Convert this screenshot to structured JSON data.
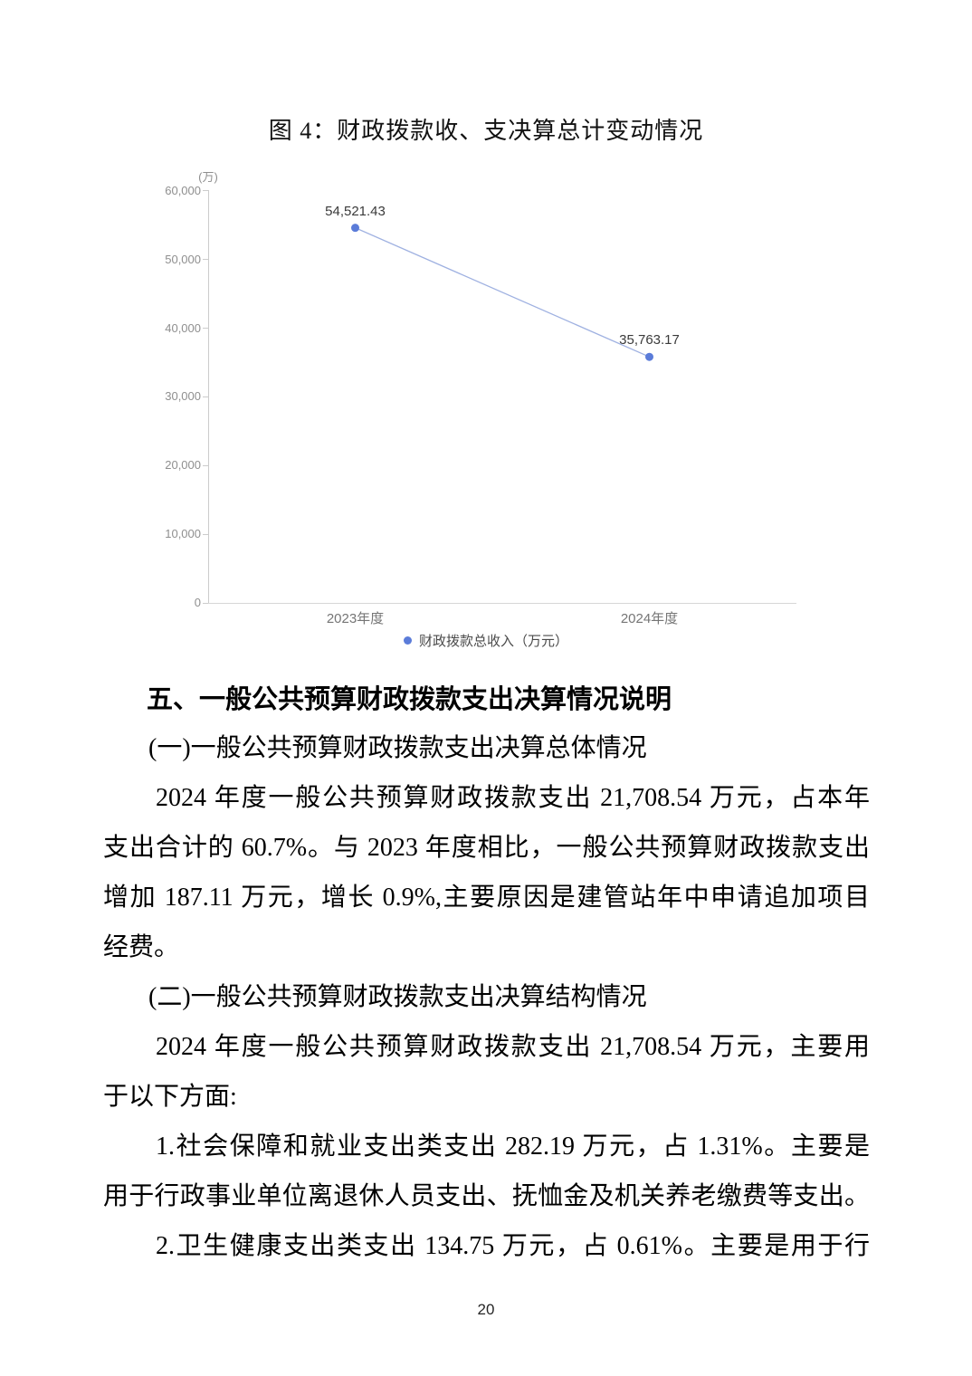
{
  "figure": {
    "title": "图 4：财政拨款收、支决算总计变动情况"
  },
  "chart_data": {
    "type": "line",
    "title": "图 4：财政拨款收、支决算总计变动情况",
    "unit_label": "(万)",
    "categories": [
      "2023年度",
      "2024年度"
    ],
    "series": [
      {
        "name": "财政拨款总收入（万元）",
        "values": [
          54521.43,
          35763.17
        ],
        "labels": [
          "54,521.43",
          "35,763.17"
        ]
      }
    ],
    "ylim": [
      0,
      60000
    ],
    "ytick_interval": 10000,
    "yticks": [
      "60,000",
      "50,000",
      "40,000",
      "30,000",
      "20,000",
      "10,000",
      "0"
    ],
    "grid": false,
    "legend_position": "bottom",
    "colors": {
      "line": "#9fb1e1",
      "point": "#5b7cd9",
      "axis": "#cccccc",
      "tick_label": "#8f8f8f",
      "category_label": "#757575",
      "data_label": "#3a3a3a"
    }
  },
  "body": {
    "lines": [
      {
        "cls": "h1",
        "text": "五、一般公共预算财政拨款支出决算情况说明"
      },
      {
        "cls": "sub",
        "text": "(一)一般公共预算财政拨款支出决算总体情况"
      },
      {
        "cls": "ind jf",
        "text": "2024 年度一般公共预算财政拨款支出 21,708.54 万元，占本年"
      },
      {
        "cls": "jf",
        "text": "支出合计的 60.7%。与 2023 年度相比，一般公共预算财政拨款支出"
      },
      {
        "cls": "jf",
        "text": "增加 187.11 万元，增长 0.9%,主要原因是建管站年中申请追加项目"
      },
      {
        "cls": "",
        "text": "经费。"
      },
      {
        "cls": "sub",
        "text": "(二)一般公共预算财政拨款支出决算结构情况"
      },
      {
        "cls": "ind jf",
        "text": "2024 年度一般公共预算财政拨款支出 21,708.54 万元，主要用"
      },
      {
        "cls": "",
        "text": "于以下方面:"
      },
      {
        "cls": "ind jf",
        "text": "1.社会保障和就业支出类支出 282.19 万元，占 1.31%。主要是"
      },
      {
        "cls": "jf",
        "text": "用于行政事业单位离退休人员支出、抚恤金及机关养老缴费等支出。"
      },
      {
        "cls": "ind jf",
        "text": "2.卫生健康支出类支出 134.75 万元，占 0.61%。主要是用于行"
      }
    ]
  },
  "page": {
    "number": "20"
  }
}
